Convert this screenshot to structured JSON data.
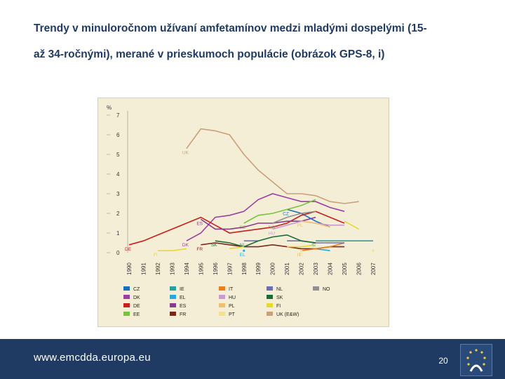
{
  "slide": {
    "title_line1": "Trendy v minuloročnom užívaní amfetamínov medzi mladými dospelými (15-",
    "title_line2": "až 34-ročnými), merané  v prieskumoch populácie (obrázok GPS-8, i)",
    "footer_url": "www.emcdda.europa.eu",
    "page_number": "20"
  },
  "chart_data": {
    "type": "line",
    "title": "",
    "xlabel": "",
    "ylabel": "%",
    "ylim": [
      0,
      7
    ],
    "grid": false,
    "legend_position": "bottom",
    "x": [
      "1990",
      "1991",
      "1992",
      "1993",
      "1994",
      "1995",
      "1996",
      "1997",
      "1998",
      "1999",
      "2000",
      "2001",
      "2002",
      "2003",
      "2004",
      "2005",
      "2006",
      "2007"
    ],
    "y_ticks": [
      "0",
      "1",
      "2",
      "3",
      "4",
      "5",
      "6",
      "7"
    ],
    "series": [
      {
        "name": "UK (E&W)",
        "label": "UK",
        "color": "#c8a07a",
        "values": [
          null,
          null,
          null,
          null,
          5.3,
          6.3,
          6.2,
          6.0,
          5.0,
          4.2,
          3.6,
          3.0,
          3.0,
          2.9,
          2.6,
          2.5,
          2.6,
          null
        ]
      },
      {
        "name": "CZ",
        "label": "CZ",
        "color": "#1a70b8",
        "values": [
          null,
          null,
          null,
          null,
          null,
          null,
          null,
          null,
          null,
          null,
          null,
          2.2,
          2.0,
          1.6,
          1.3,
          null,
          null,
          null
        ]
      },
      {
        "name": "DK",
        "label": "DK",
        "color": "#9b3fa3",
        "values": [
          null,
          null,
          null,
          null,
          0.6,
          1.0,
          1.8,
          1.9,
          2.1,
          2.7,
          3.0,
          2.8,
          2.6,
          2.6,
          2.3,
          2.1,
          null,
          null
        ]
      },
      {
        "name": "DE",
        "label": "DE",
        "color": "#c8201e",
        "values": [
          0.4,
          0.6,
          0.9,
          1.2,
          1.5,
          1.8,
          1.4,
          1.0,
          1.1,
          1.2,
          1.3,
          1.5,
          1.9,
          2.1,
          1.8,
          1.5,
          null,
          null
        ]
      },
      {
        "name": "EE",
        "label": "EE",
        "color": "#7ac142",
        "values": [
          null,
          null,
          null,
          null,
          null,
          null,
          null,
          null,
          1.5,
          1.9,
          2.0,
          2.2,
          2.4,
          2.7,
          null,
          null,
          null,
          null
        ]
      },
      {
        "name": "IE",
        "label": "IE",
        "color": "#28a0a0",
        "values": [
          null,
          null,
          null,
          null,
          null,
          null,
          null,
          null,
          null,
          null,
          null,
          null,
          null,
          0.6,
          0.6,
          0.6,
          0.6,
          0.6
        ]
      },
      {
        "name": "EL",
        "label": "EL",
        "color": "#2aa8d8",
        "values": [
          null,
          null,
          null,
          null,
          null,
          null,
          null,
          null,
          0.1,
          null,
          null,
          null,
          null,
          0.2,
          0.1,
          null,
          null,
          null
        ]
      },
      {
        "name": "ES",
        "label": "ES",
        "color": "#8a3a8a",
        "values": [
          null,
          null,
          null,
          null,
          null,
          1.7,
          1.2,
          1.2,
          1.3,
          1.5,
          1.5,
          1.6,
          1.6,
          1.8,
          null,
          null,
          null,
          null
        ]
      },
      {
        "name": "FR",
        "label": "FR",
        "color": "#7a2818",
        "values": [
          null,
          null,
          null,
          null,
          null,
          0.4,
          0.5,
          0.4,
          0.3,
          0.3,
          0.4,
          0.3,
          0.2,
          0.2,
          0.3,
          0.3,
          null,
          null
        ]
      },
      {
        "name": "IT",
        "label": "IT",
        "color": "#e8801e",
        "values": [
          null,
          null,
          null,
          null,
          null,
          null,
          null,
          null,
          null,
          null,
          null,
          null,
          0.1,
          0.2,
          0.3,
          0.5,
          null,
          null
        ]
      },
      {
        "name": "HU",
        "label": "HU",
        "color": "#c89ad0",
        "values": [
          null,
          null,
          null,
          null,
          null,
          null,
          null,
          null,
          null,
          null,
          1.2,
          1.4,
          1.6,
          1.5,
          1.4,
          1.4,
          null,
          null
        ]
      },
      {
        "name": "PL",
        "label": "PL",
        "color": "#f0c070",
        "values": [
          null,
          null,
          null,
          null,
          null,
          null,
          null,
          null,
          null,
          null,
          null,
          null,
          1.6,
          1.5,
          1.3,
          null,
          null,
          null
        ]
      },
      {
        "name": "PT",
        "label": "PT",
        "color": "#f0e090",
        "values": [
          null,
          null,
          null,
          null,
          null,
          null,
          null,
          null,
          null,
          null,
          null,
          null,
          0.1,
          null,
          null,
          null,
          null,
          0.1
        ]
      },
      {
        "name": "NL",
        "label": "NL",
        "color": "#6a70b0",
        "values": [
          null,
          null,
          null,
          null,
          null,
          null,
          null,
          null,
          0.6,
          0.6,
          null,
          0.6,
          0.6,
          0.5,
          0.5,
          0.5,
          null,
          null
        ]
      },
      {
        "name": "SK",
        "label": "SK",
        "color": "#1a6a3a",
        "values": [
          null,
          null,
          null,
          null,
          null,
          null,
          0.6,
          0.5,
          0.3,
          0.6,
          0.8,
          0.9,
          0.6,
          0.5,
          null,
          null,
          null,
          null
        ]
      },
      {
        "name": "FI",
        "label": "FI",
        "color": "#e8d830",
        "values": [
          null,
          null,
          0.1,
          0.1,
          0.2,
          null,
          null,
          0.2,
          0.3,
          null,
          null,
          0.3,
          0.3,
          0.4,
          null,
          1.6,
          1.2,
          null
        ]
      },
      {
        "name": "NO",
        "label": "NO",
        "color": "#909090",
        "values": [
          null,
          null,
          null,
          null,
          null,
          null,
          null,
          null,
          null,
          null,
          1.5,
          1.8,
          2.0,
          2.1,
          null,
          null,
          null,
          null
        ]
      }
    ]
  }
}
